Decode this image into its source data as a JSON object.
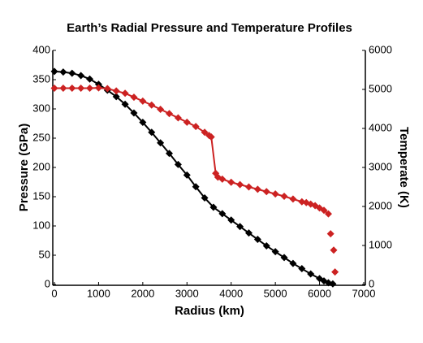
{
  "chart_data": {
    "type": "line",
    "title": "Earth’s Radial Pressure and Temperature Profiles",
    "xlabel": "Radius (km)",
    "ylabel": "Pressure (GPa)",
    "y2label": "Temperate (K)",
    "xlim": [
      0,
      7000
    ],
    "xticks": [
      0,
      1000,
      2000,
      3000,
      4000,
      5000,
      6000,
      7000
    ],
    "ylim": [
      0,
      400
    ],
    "yticks": [
      0,
      50,
      100,
      150,
      200,
      250,
      300,
      350,
      400
    ],
    "y2lim": [
      0,
      6000
    ],
    "y2ticks": [
      0,
      1000,
      2000,
      3000,
      4000,
      5000,
      6000
    ],
    "series": [
      {
        "color": "#000000",
        "axis": "y",
        "x": [
          0,
          200,
          400,
          600,
          800,
          1000,
          1200,
          1400,
          1600,
          1800,
          2000,
          2200,
          2400,
          2600,
          2800,
          3000,
          3200,
          3400,
          3600,
          3800,
          4000,
          4200,
          4400,
          4600,
          4800,
          5000,
          5200,
          5400,
          5600,
          5800,
          6000,
          6100,
          6200,
          6300
        ],
        "values": [
          364,
          363,
          361,
          357,
          351,
          342,
          332,
          321,
          308,
          293,
          277,
          260,
          242,
          224,
          205,
          187,
          167,
          148,
          132,
          121,
          110,
          99,
          88,
          77,
          66,
          56,
          46,
          36,
          27,
          18,
          10,
          6,
          3,
          1
        ]
      },
      {
        "color": "#cc2222",
        "axis": "y2",
        "x": [
          0,
          200,
          400,
          600,
          800,
          1000,
          1200,
          1400,
          1600,
          1800,
          2000,
          2200,
          2400,
          2600,
          2800,
          3000,
          3200,
          3400,
          3500,
          3550,
          3650,
          3700,
          3800,
          4000,
          4200,
          4400,
          4600,
          4800,
          5000,
          5200,
          5400,
          5600,
          5700,
          5800,
          5900,
          6000,
          6100,
          6200,
          null,
          6250,
          null,
          6320,
          null,
          6350
        ],
        "values": [
          5030,
          5030,
          5030,
          5030,
          5030,
          5040,
          5020,
          4960,
          4900,
          4800,
          4700,
          4600,
          4490,
          4380,
          4270,
          4160,
          4050,
          3900,
          3820,
          3780,
          2850,
          2750,
          2700,
          2620,
          2560,
          2500,
          2440,
          2380,
          2320,
          2260,
          2190,
          2120,
          2100,
          2060,
          2020,
          1960,
          1900,
          1810,
          null,
          1300,
          null,
          880,
          null,
          320
        ]
      }
    ]
  }
}
